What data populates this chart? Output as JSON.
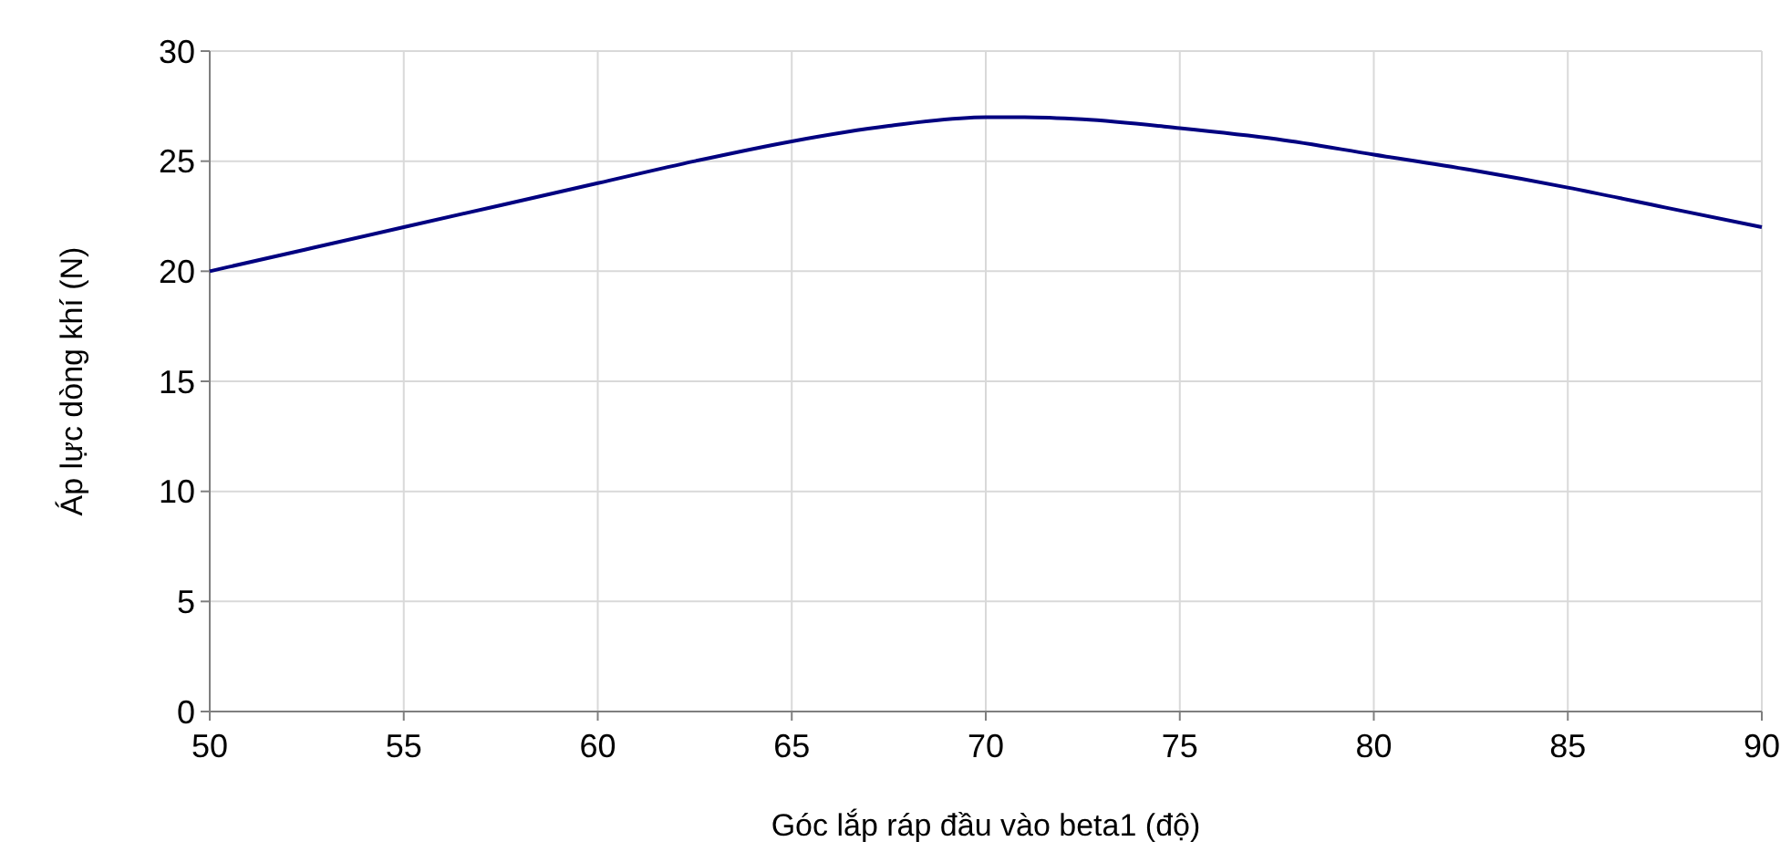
{
  "chart_data": {
    "type": "line",
    "xlabel": "Góc lắp ráp đầu vào beta1 (độ)",
    "ylabel": "Áp lực dòng khí (N)",
    "x": [
      50,
      52.5,
      55,
      57.5,
      60,
      62.5,
      65,
      67.5,
      70,
      71,
      72.5,
      75,
      77.5,
      80,
      82.5,
      85,
      87.5,
      90
    ],
    "series": [
      {
        "color": "#000080",
        "values": [
          20,
          21,
          22,
          23,
          24,
          25,
          25.9,
          26.6,
          27,
          27,
          26.9,
          26.5,
          26,
          25.3,
          24.6,
          23.8,
          22.9,
          22
        ]
      }
    ],
    "xlim": [
      50,
      90
    ],
    "xticks": [
      50,
      55,
      60,
      65,
      70,
      75,
      80,
      85,
      90
    ],
    "ylim": [
      0,
      30
    ],
    "yticks": [
      0,
      5,
      10,
      15,
      20,
      25,
      30
    ],
    "grid": true,
    "marker": "none",
    "line_style": "solid"
  }
}
